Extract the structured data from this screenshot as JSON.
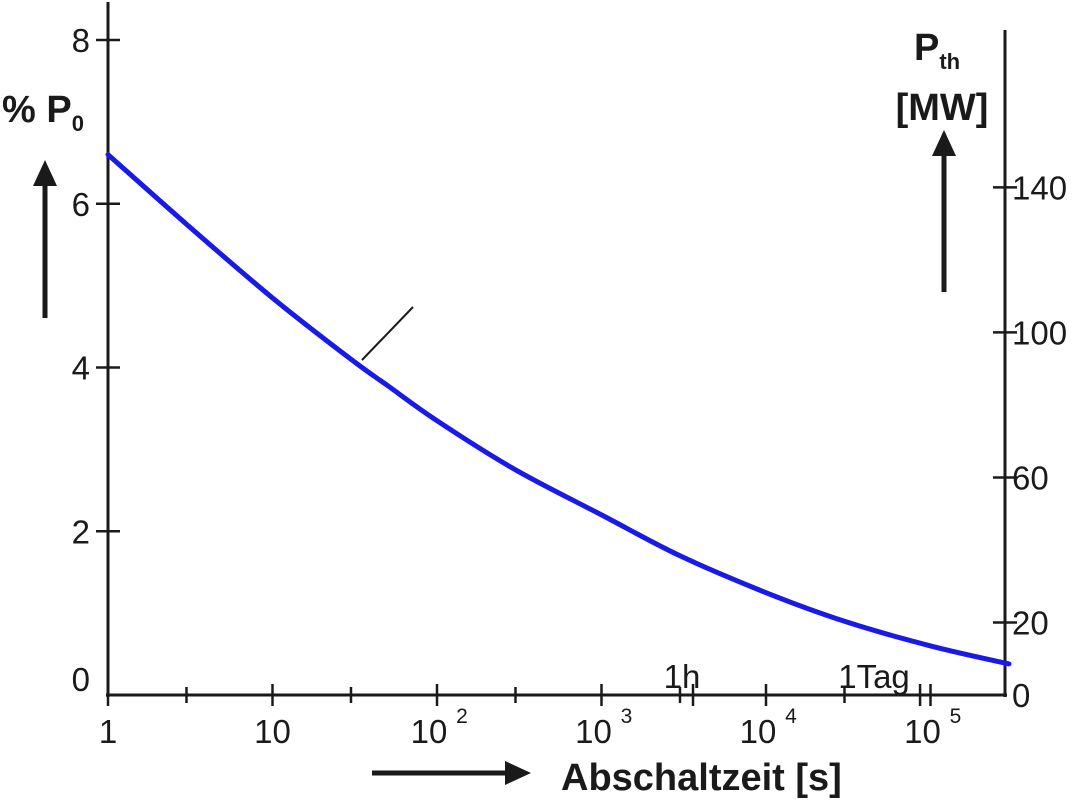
{
  "chart_data": {
    "type": "line",
    "x_scale": "log",
    "xlabel": "Abschaltzeit [s]",
    "ylabel_left": "% P",
    "ylabel_left_subscript": "0",
    "ylabel_right": "P",
    "ylabel_right_subscript": "th",
    "ylabel_right_unit": "[MW]",
    "xlim": [
      1,
      300000
    ],
    "ylim_left": [
      0,
      8.2
    ],
    "ylim_right": [
      0,
      180
    ],
    "x_ticks": [
      {
        "value": 1,
        "base": "1",
        "exp": ""
      },
      {
        "value": 10,
        "base": "10",
        "exp": ""
      },
      {
        "value": 100,
        "base": "10",
        "exp": "2"
      },
      {
        "value": 1000,
        "base": "10",
        "exp": "3"
      },
      {
        "value": 10000,
        "base": "10",
        "exp": "4"
      },
      {
        "value": 100000,
        "base": "10",
        "exp": "5"
      }
    ],
    "y_ticks_left": [
      "0",
      "2",
      "4",
      "6",
      "8"
    ],
    "y_ticks_right": [
      "0",
      "20",
      "60",
      "100",
      "140"
    ],
    "annotations": [
      {
        "text": "1h",
        "x": 3600
      },
      {
        "text": "1Tag",
        "x": 86400
      }
    ],
    "series": [
      {
        "color": "#1a1ae6",
        "x": [
          1,
          3,
          10,
          30,
          50,
          100,
          300,
          1000,
          3000,
          10000,
          30000,
          100000,
          300000
        ],
        "y": [
          6.6,
          5.75,
          4.85,
          4.1,
          3.78,
          3.35,
          2.75,
          2.2,
          1.7,
          1.25,
          0.9,
          0.6,
          0.38
        ]
      }
    ],
    "grid": false
  }
}
